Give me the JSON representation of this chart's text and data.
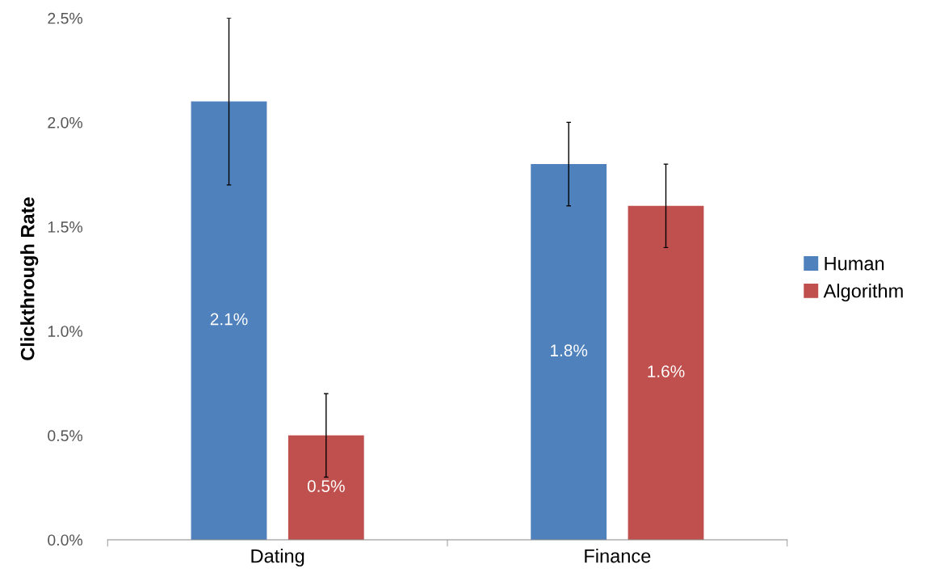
{
  "chart_data": {
    "type": "bar",
    "ylabel": "Clickthrough Rate",
    "categories": [
      "Dating",
      "Finance"
    ],
    "series": [
      {
        "name": "Human",
        "color": "#4f81bd",
        "values": [
          2.1,
          1.8
        ],
        "errors": [
          0.4,
          0.2
        ],
        "value_labels": [
          "2.1%",
          "1.8%"
        ]
      },
      {
        "name": "Algorithm",
        "color": "#c0504d",
        "values": [
          0.5,
          1.6
        ],
        "errors": [
          0.2,
          0.2
        ],
        "value_labels": [
          "0.5%",
          "1.6%"
        ]
      }
    ],
    "ylim": [
      0,
      2.5
    ],
    "yticks": [
      {
        "value": 0,
        "label": "0.0%"
      },
      {
        "value": 0.5,
        "label": "0.5%"
      },
      {
        "value": 1.0,
        "label": "1.0%"
      },
      {
        "value": 1.5,
        "label": "1.5%"
      },
      {
        "value": 2.0,
        "label": "2.0%"
      },
      {
        "value": 2.5,
        "label": "2.5%"
      }
    ],
    "legend": "right"
  }
}
